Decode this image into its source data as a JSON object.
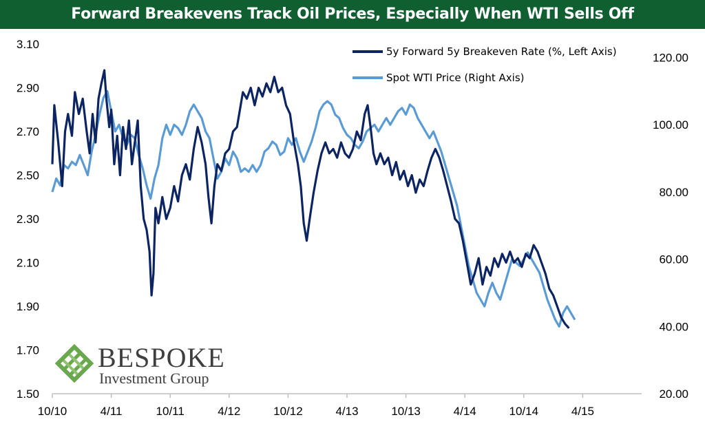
{
  "chart_data": {
    "type": "line",
    "title": "Forward Breakevens Track Oil Prices, Especially When WTI Sells Off",
    "x_tick_labels": [
      "10/10",
      "4/11",
      "10/11",
      "4/12",
      "10/12",
      "4/13",
      "10/13",
      "4/14",
      "10/14",
      "4/15"
    ],
    "y_left": {
      "min": 1.5,
      "max": 3.1,
      "ticks": [
        "1.50",
        "1.70",
        "1.90",
        "2.10",
        "2.30",
        "2.50",
        "2.70",
        "2.90",
        "3.10"
      ]
    },
    "y_right": {
      "min": 20,
      "max": 124,
      "ticks": [
        "20.00",
        "40.00",
        "60.00",
        "80.00",
        "100.00",
        "120.00"
      ]
    },
    "x_range_months": [
      0,
      60
    ],
    "series": [
      {
        "name": "5y Forward 5y Breakeven Rate (%, Left Axis)",
        "axis": "left",
        "color": "#0c2461",
        "points": [
          [
            0,
            2.55
          ],
          [
            0.2,
            2.82
          ],
          [
            0.6,
            2.65
          ],
          [
            1.0,
            2.45
          ],
          [
            1.3,
            2.7
          ],
          [
            1.6,
            2.78
          ],
          [
            2.0,
            2.68
          ],
          [
            2.3,
            2.88
          ],
          [
            2.7,
            2.78
          ],
          [
            3.1,
            2.85
          ],
          [
            3.5,
            2.7
          ],
          [
            3.8,
            2.6
          ],
          [
            4.1,
            2.78
          ],
          [
            4.4,
            2.65
          ],
          [
            4.7,
            2.85
          ],
          [
            5.0,
            2.92
          ],
          [
            5.3,
            2.98
          ],
          [
            5.5,
            2.85
          ],
          [
            5.8,
            2.72
          ],
          [
            6.0,
            2.8
          ],
          [
            6.3,
            2.55
          ],
          [
            6.6,
            2.68
          ],
          [
            6.9,
            2.5
          ],
          [
            7.2,
            2.72
          ],
          [
            7.5,
            2.62
          ],
          [
            7.8,
            2.75
          ],
          [
            8.1,
            2.55
          ],
          [
            8.4,
            2.65
          ],
          [
            8.7,
            2.75
          ],
          [
            9.0,
            2.45
          ],
          [
            9.3,
            2.3
          ],
          [
            9.6,
            2.25
          ],
          [
            9.9,
            2.15
          ],
          [
            10.1,
            1.95
          ],
          [
            10.3,
            2.05
          ],
          [
            10.5,
            2.35
          ],
          [
            10.8,
            2.28
          ],
          [
            11.2,
            2.4
          ],
          [
            11.6,
            2.3
          ],
          [
            12.0,
            2.35
          ],
          [
            12.4,
            2.45
          ],
          [
            12.8,
            2.38
          ],
          [
            13.2,
            2.5
          ],
          [
            13.6,
            2.55
          ],
          [
            14.0,
            2.48
          ],
          [
            14.4,
            2.62
          ],
          [
            14.8,
            2.72
          ],
          [
            15.2,
            2.65
          ],
          [
            15.6,
            2.55
          ],
          [
            15.9,
            2.4
          ],
          [
            16.2,
            2.28
          ],
          [
            16.5,
            2.45
          ],
          [
            16.8,
            2.55
          ],
          [
            17.2,
            2.52
          ],
          [
            17.6,
            2.6
          ],
          [
            18.0,
            2.62
          ],
          [
            18.4,
            2.7
          ],
          [
            18.8,
            2.72
          ],
          [
            19.1,
            2.8
          ],
          [
            19.4,
            2.88
          ],
          [
            19.8,
            2.85
          ],
          [
            20.2,
            2.9
          ],
          [
            20.6,
            2.82
          ],
          [
            21.0,
            2.9
          ],
          [
            21.4,
            2.86
          ],
          [
            21.8,
            2.92
          ],
          [
            22.2,
            2.88
          ],
          [
            22.6,
            2.95
          ],
          [
            23.0,
            2.88
          ],
          [
            23.4,
            2.9
          ],
          [
            23.8,
            2.82
          ],
          [
            24.2,
            2.78
          ],
          [
            24.6,
            2.65
          ],
          [
            25.0,
            2.55
          ],
          [
            25.3,
            2.45
          ],
          [
            25.6,
            2.28
          ],
          [
            25.9,
            2.2
          ],
          [
            26.2,
            2.3
          ],
          [
            26.6,
            2.42
          ],
          [
            27.0,
            2.52
          ],
          [
            27.4,
            2.6
          ],
          [
            27.8,
            2.65
          ],
          [
            28.2,
            2.6
          ],
          [
            28.6,
            2.62
          ],
          [
            29.0,
            2.58
          ],
          [
            29.4,
            2.65
          ],
          [
            29.8,
            2.6
          ],
          [
            30.2,
            2.58
          ],
          [
            30.6,
            2.62
          ],
          [
            31.0,
            2.7
          ],
          [
            31.4,
            2.66
          ],
          [
            31.8,
            2.78
          ],
          [
            32.1,
            2.82
          ],
          [
            32.4,
            2.72
          ],
          [
            32.7,
            2.6
          ],
          [
            33.0,
            2.55
          ],
          [
            33.4,
            2.6
          ],
          [
            33.8,
            2.55
          ],
          [
            34.2,
            2.58
          ],
          [
            34.6,
            2.5
          ],
          [
            35.0,
            2.56
          ],
          [
            35.4,
            2.48
          ],
          [
            35.8,
            2.52
          ],
          [
            36.2,
            2.45
          ],
          [
            36.6,
            2.5
          ],
          [
            37.0,
            2.42
          ],
          [
            37.4,
            2.48
          ],
          [
            37.8,
            2.45
          ],
          [
            38.2,
            2.52
          ],
          [
            38.6,
            2.58
          ],
          [
            39.0,
            2.62
          ],
          [
            39.4,
            2.58
          ],
          [
            39.8,
            2.52
          ],
          [
            40.2,
            2.45
          ],
          [
            40.6,
            2.38
          ],
          [
            41.0,
            2.3
          ],
          [
            41.4,
            2.28
          ],
          [
            41.8,
            2.2
          ],
          [
            42.2,
            2.1
          ],
          [
            42.6,
            2.0
          ],
          [
            43.0,
            2.05
          ],
          [
            43.4,
            2.12
          ],
          [
            43.8,
            2.0
          ],
          [
            44.2,
            2.08
          ],
          [
            44.6,
            2.04
          ],
          [
            45.0,
            2.12
          ],
          [
            45.4,
            2.08
          ],
          [
            45.8,
            2.14
          ],
          [
            46.2,
            2.1
          ],
          [
            46.6,
            2.15
          ],
          [
            47.0,
            2.1
          ],
          [
            47.4,
            2.12
          ],
          [
            47.8,
            2.08
          ],
          [
            48.2,
            2.14
          ],
          [
            48.6,
            2.12
          ],
          [
            49.0,
            2.18
          ],
          [
            49.4,
            2.15
          ],
          [
            49.8,
            2.1
          ],
          [
            50.2,
            2.05
          ],
          [
            50.6,
            1.98
          ],
          [
            51.0,
            1.95
          ],
          [
            51.4,
            1.9
          ],
          [
            51.8,
            1.85
          ],
          [
            52.2,
            1.82
          ],
          [
            52.6,
            1.8
          ]
        ]
      },
      {
        "name": "Spot WTI Price (Right Axis)",
        "axis": "right",
        "color": "#5b9bd5",
        "points": [
          [
            0,
            80
          ],
          [
            0.4,
            84
          ],
          [
            0.8,
            82
          ],
          [
            1.2,
            88
          ],
          [
            1.6,
            87
          ],
          [
            2.0,
            89
          ],
          [
            2.4,
            88
          ],
          [
            2.8,
            91
          ],
          [
            3.2,
            88
          ],
          [
            3.6,
            85
          ],
          [
            4.0,
            92
          ],
          [
            4.4,
            97
          ],
          [
            4.8,
            103
          ],
          [
            5.2,
            108
          ],
          [
            5.6,
            110
          ],
          [
            6.0,
            104
          ],
          [
            6.4,
            98
          ],
          [
            6.8,
            100
          ],
          [
            7.2,
            96
          ],
          [
            7.6,
            94
          ],
          [
            8.0,
            97
          ],
          [
            8.4,
            96
          ],
          [
            8.8,
            91
          ],
          [
            9.2,
            87
          ],
          [
            9.6,
            82
          ],
          [
            10.0,
            78
          ],
          [
            10.4,
            84
          ],
          [
            10.8,
            88
          ],
          [
            11.2,
            96
          ],
          [
            11.6,
            100
          ],
          [
            12.0,
            97
          ],
          [
            12.4,
            100
          ],
          [
            12.8,
            99
          ],
          [
            13.2,
            97
          ],
          [
            13.6,
            100
          ],
          [
            14.0,
            104
          ],
          [
            14.4,
            106
          ],
          [
            14.8,
            104
          ],
          [
            15.2,
            102
          ],
          [
            15.6,
            98
          ],
          [
            16.0,
            96
          ],
          [
            16.4,
            90
          ],
          [
            16.8,
            84
          ],
          [
            17.2,
            86
          ],
          [
            17.6,
            90
          ],
          [
            18.0,
            88
          ],
          [
            18.4,
            92
          ],
          [
            18.8,
            90
          ],
          [
            19.2,
            86
          ],
          [
            19.6,
            87
          ],
          [
            20.0,
            86
          ],
          [
            20.4,
            88
          ],
          [
            20.8,
            86
          ],
          [
            21.2,
            88
          ],
          [
            21.6,
            92
          ],
          [
            22.0,
            93
          ],
          [
            22.4,
            95
          ],
          [
            22.8,
            94
          ],
          [
            23.2,
            91
          ],
          [
            23.6,
            92
          ],
          [
            24.0,
            96
          ],
          [
            24.4,
            94
          ],
          [
            24.8,
            96
          ],
          [
            25.2,
            92
          ],
          [
            25.6,
            89
          ],
          [
            26.0,
            92
          ],
          [
            26.4,
            95
          ],
          [
            26.8,
            99
          ],
          [
            27.2,
            104
          ],
          [
            27.6,
            106
          ],
          [
            28.0,
            107
          ],
          [
            28.4,
            106
          ],
          [
            28.8,
            103
          ],
          [
            29.2,
            102
          ],
          [
            29.6,
            99
          ],
          [
            30.0,
            97
          ],
          [
            30.4,
            96
          ],
          [
            30.8,
            94
          ],
          [
            31.2,
            93
          ],
          [
            31.6,
            95
          ],
          [
            32.0,
            98
          ],
          [
            32.4,
            99
          ],
          [
            32.8,
            100
          ],
          [
            33.2,
            98
          ],
          [
            33.6,
            100
          ],
          [
            34.0,
            102
          ],
          [
            34.4,
            100
          ],
          [
            34.8,
            102
          ],
          [
            35.2,
            104
          ],
          [
            35.6,
            105
          ],
          [
            36.0,
            103
          ],
          [
            36.4,
            106
          ],
          [
            36.8,
            105
          ],
          [
            37.2,
            102
          ],
          [
            37.6,
            100
          ],
          [
            38.0,
            98
          ],
          [
            38.4,
            96
          ],
          [
            38.8,
            98
          ],
          [
            39.2,
            95
          ],
          [
            39.6,
            92
          ],
          [
            40.0,
            88
          ],
          [
            40.4,
            84
          ],
          [
            40.8,
            80
          ],
          [
            41.2,
            76
          ],
          [
            41.6,
            70
          ],
          [
            42.0,
            64
          ],
          [
            42.4,
            58
          ],
          [
            42.8,
            54
          ],
          [
            43.2,
            50
          ],
          [
            43.6,
            48
          ],
          [
            44.0,
            46
          ],
          [
            44.4,
            50
          ],
          [
            44.8,
            53
          ],
          [
            45.2,
            50
          ],
          [
            45.6,
            48
          ],
          [
            46.0,
            52
          ],
          [
            46.4,
            56
          ],
          [
            46.8,
            60
          ],
          [
            47.2,
            59
          ],
          [
            47.6,
            58
          ],
          [
            48.0,
            60
          ],
          [
            48.4,
            62
          ],
          [
            48.8,
            60
          ],
          [
            49.2,
            58
          ],
          [
            49.6,
            56
          ],
          [
            50.0,
            52
          ],
          [
            50.4,
            48
          ],
          [
            50.8,
            45
          ],
          [
            51.2,
            42
          ],
          [
            51.6,
            40
          ],
          [
            52.0,
            44
          ],
          [
            52.4,
            46
          ],
          [
            52.8,
            44
          ],
          [
            53.2,
            42
          ]
        ]
      }
    ],
    "legend_position": "top-right",
    "grid": false
  },
  "logo": {
    "name": "BESPOKE",
    "tagline": "Investment Group"
  }
}
